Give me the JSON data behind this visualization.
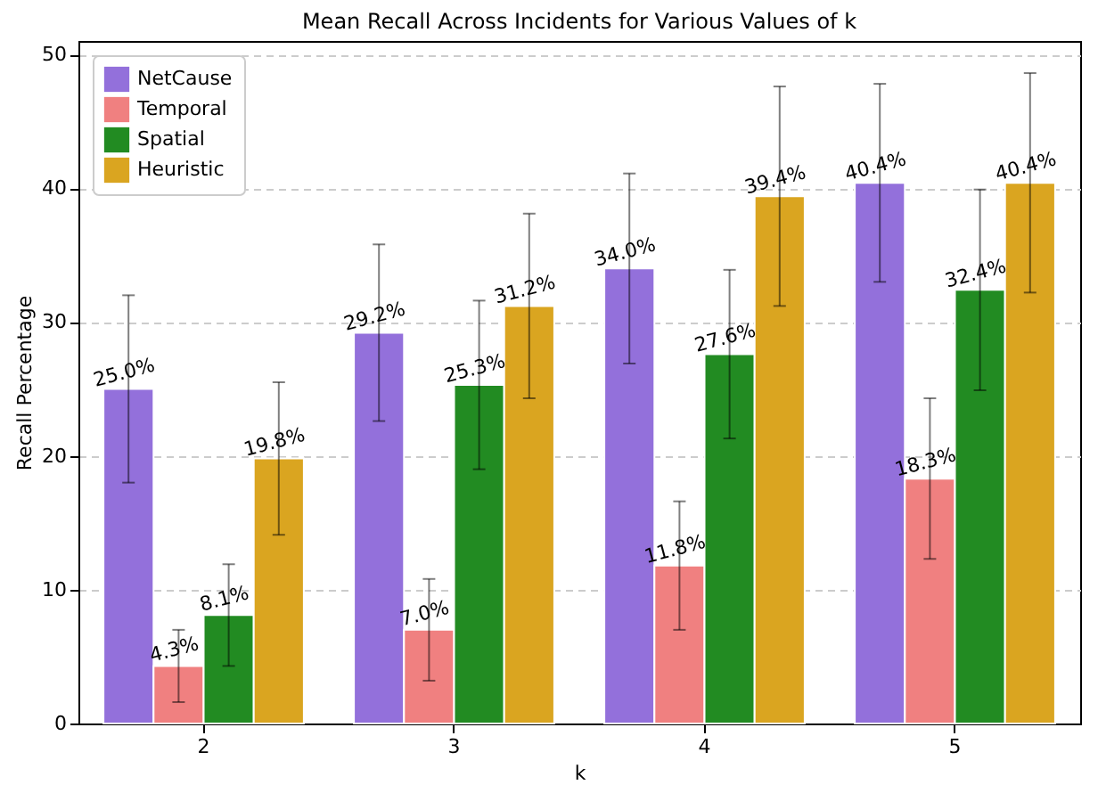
{
  "chart_data": {
    "type": "bar",
    "title": "Mean Recall Across Incidents for Various Values of k",
    "xlabel": "k",
    "ylabel": "Recall Percentage",
    "categories": [
      "2",
      "3",
      "4",
      "5"
    ],
    "series": [
      {
        "name": "NetCause",
        "color": "#9370db",
        "values": [
          25.0,
          29.2,
          34.0,
          40.4
        ],
        "errors": [
          7.0,
          6.6,
          7.1,
          7.4
        ],
        "value_labels": [
          "25.0%",
          "29.2%",
          "34.0%",
          "40.4%"
        ]
      },
      {
        "name": "Temporal",
        "color": "#f08080",
        "values": [
          4.3,
          7.0,
          11.8,
          18.3
        ],
        "errors": [
          2.7,
          3.8,
          4.8,
          6.0
        ],
        "value_labels": [
          "4.3%",
          "7.0%",
          "11.8%",
          "18.3%"
        ]
      },
      {
        "name": "Spatial",
        "color": "#228b22",
        "values": [
          8.1,
          25.3,
          27.6,
          32.4
        ],
        "errors": [
          3.8,
          6.3,
          6.3,
          7.5
        ],
        "value_labels": [
          "8.1%",
          "25.3%",
          "27.6%",
          "32.4%"
        ]
      },
      {
        "name": "Heuristic",
        "color": "#daa520",
        "values": [
          19.8,
          31.2,
          39.4,
          40.4
        ],
        "errors": [
          5.7,
          6.9,
          8.2,
          8.2
        ],
        "value_labels": [
          "19.8%",
          "31.2%",
          "39.4%",
          "40.4%"
        ]
      }
    ],
    "ylim": [
      0,
      51
    ],
    "yticks": [
      0,
      10,
      20,
      30,
      40,
      50
    ],
    "grid": "y",
    "legend": "top left"
  }
}
